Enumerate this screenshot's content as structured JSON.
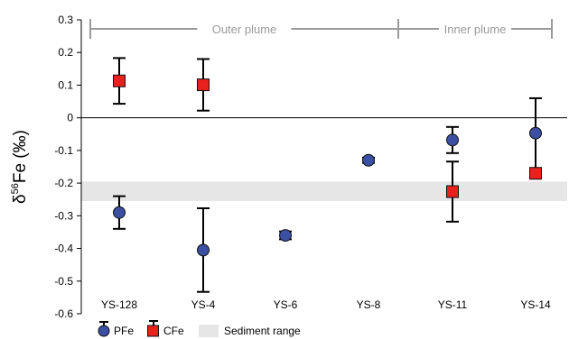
{
  "chart_data": {
    "type": "scatter",
    "ylabel_main": "δ",
    "ylabel_sup": "56",
    "ylabel_rest": "Fe (‰)",
    "ylim": [
      -0.6,
      0.3
    ],
    "yticks": [
      "0.3",
      "0.2",
      "0.1",
      "0",
      "-0.1",
      "-0.2",
      "-0.3",
      "-0.4",
      "-0.5",
      "-0.6"
    ],
    "ytick_values": [
      0.3,
      0.2,
      0.1,
      0,
      -0.1,
      -0.2,
      -0.3,
      -0.4,
      -0.5,
      -0.6
    ],
    "categories": [
      "YS-128",
      "YS-4",
      "YS-6",
      "YS-8",
      "YS-11",
      "YS-14"
    ],
    "sediment_range": [
      -0.255,
      -0.195
    ],
    "series": [
      {
        "name": "PFe",
        "marker": "circle",
        "color": "#3b4fa3",
        "values": [
          -0.29,
          -0.405,
          -0.36,
          -0.13,
          -0.068,
          -0.047
        ],
        "errors": [
          0.05,
          0.128,
          0.012,
          0.008,
          0.04,
          0.107
        ]
      },
      {
        "name": "CFe",
        "marker": "square",
        "color": "#e8201e",
        "values": [
          0.113,
          0.101,
          null,
          null,
          -0.226,
          -0.17
        ],
        "errors": [
          0.07,
          0.079,
          null,
          null,
          0.092,
          null
        ]
      }
    ],
    "groups": [
      {
        "label": "Outer plume",
        "from": 0,
        "to": 3
      },
      {
        "label": "Inner plume",
        "from": 3,
        "to": 5
      }
    ],
    "legend": [
      {
        "label": "PFe",
        "marker": "circle",
        "color": "#3b4fa3"
      },
      {
        "label": "CFe",
        "marker": "square",
        "color": "#e8201e"
      },
      {
        "label": "Sediment range",
        "marker": "band",
        "color": "#e6e6e6"
      }
    ],
    "colors": {
      "axis": "#000000",
      "bracket": "#9a9a9a",
      "band": "#e6e6e6"
    }
  }
}
